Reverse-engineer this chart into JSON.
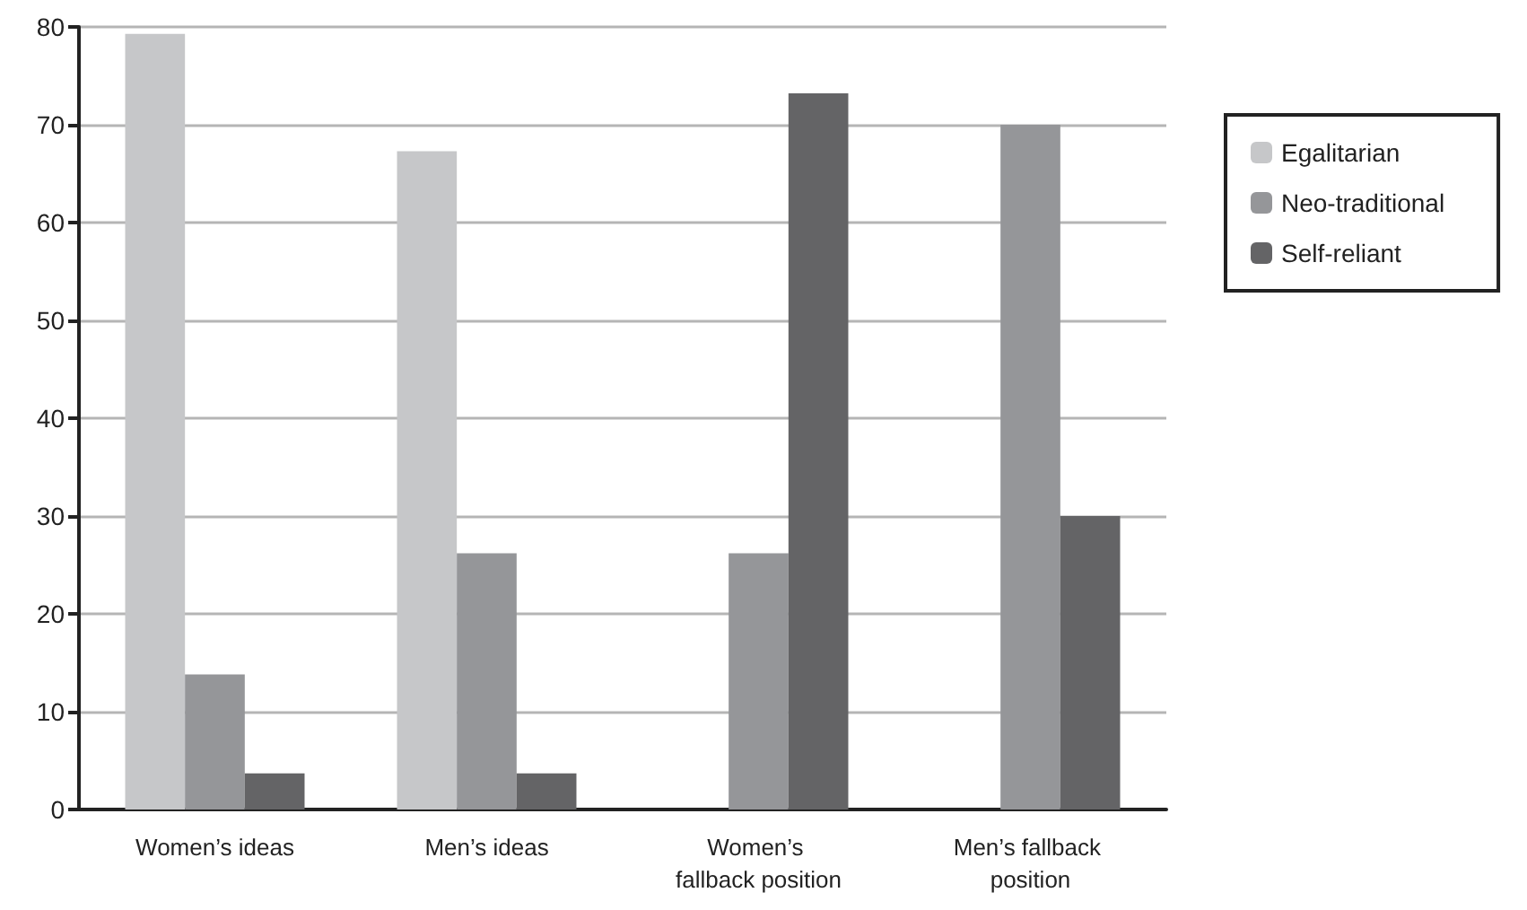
{
  "chart_data": {
    "type": "bar",
    "categories": [
      "Women’s ideas",
      "Men’s ideas",
      "Women’s fallback position",
      "Men’s fallback position"
    ],
    "series": [
      {
        "name": "Egalitarian",
        "color": "#c6c7c9",
        "values": [
          79.3,
          67.3,
          null,
          null
        ]
      },
      {
        "name": "Neo-traditional",
        "color": "#959699",
        "values": [
          13.8,
          26.2,
          26.2,
          70
        ]
      },
      {
        "name": "Self-reliant",
        "color": "#646466",
        "values": [
          3.7,
          3.7,
          73.2,
          30
        ]
      }
    ],
    "ylim": [
      0,
      80
    ],
    "yticks": [
      0,
      10,
      20,
      30,
      40,
      50,
      60,
      70,
      80
    ],
    "grid": "y",
    "legend": "right"
  }
}
